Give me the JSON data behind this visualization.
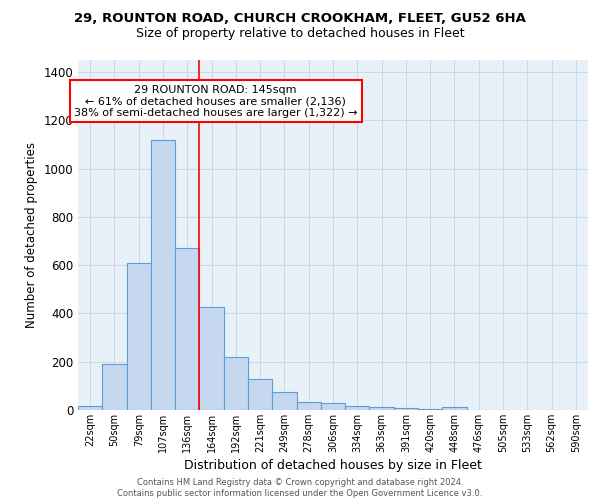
{
  "title": "29, ROUNTON ROAD, CHURCH CROOKHAM, FLEET, GU52 6HA",
  "subtitle": "Size of property relative to detached houses in Fleet",
  "xlabel": "Distribution of detached houses by size in Fleet",
  "ylabel": "Number of detached properties",
  "categories": [
    "22sqm",
    "50sqm",
    "79sqm",
    "107sqm",
    "136sqm",
    "164sqm",
    "192sqm",
    "221sqm",
    "249sqm",
    "278sqm",
    "306sqm",
    "334sqm",
    "363sqm",
    "391sqm",
    "420sqm",
    "448sqm",
    "476sqm",
    "505sqm",
    "533sqm",
    "562sqm",
    "590sqm"
  ],
  "values": [
    15,
    190,
    610,
    1120,
    670,
    425,
    218,
    128,
    75,
    33,
    30,
    18,
    13,
    9,
    5,
    12,
    0,
    0,
    0,
    0,
    0
  ],
  "bar_color": "#c5d8f0",
  "bar_edge_color": "#5a9fd4",
  "bar_edge_width": 0.8,
  "grid_color": "#ccd8e8",
  "bg_color": "#e8f0f8",
  "property_line_x": 4.5,
  "property_line_color": "red",
  "annotation_text": "29 ROUNTON ROAD: 145sqm\n← 61% of detached houses are smaller (2,136)\n38% of semi-detached houses are larger (1,322) →",
  "annotation_box_color": "white",
  "annotation_box_edge_color": "red",
  "footer_line1": "Contains HM Land Registry data © Crown copyright and database right 2024.",
  "footer_line2": "Contains public sector information licensed under the Open Government Licence v3.0.",
  "ylim": [
    0,
    1450
  ],
  "title_fontsize": 9.5,
  "subtitle_fontsize": 9,
  "tick_fontsize": 7,
  "ylabel_fontsize": 8.5,
  "xlabel_fontsize": 9,
  "footer_fontsize": 6,
  "annotation_fontsize": 8
}
